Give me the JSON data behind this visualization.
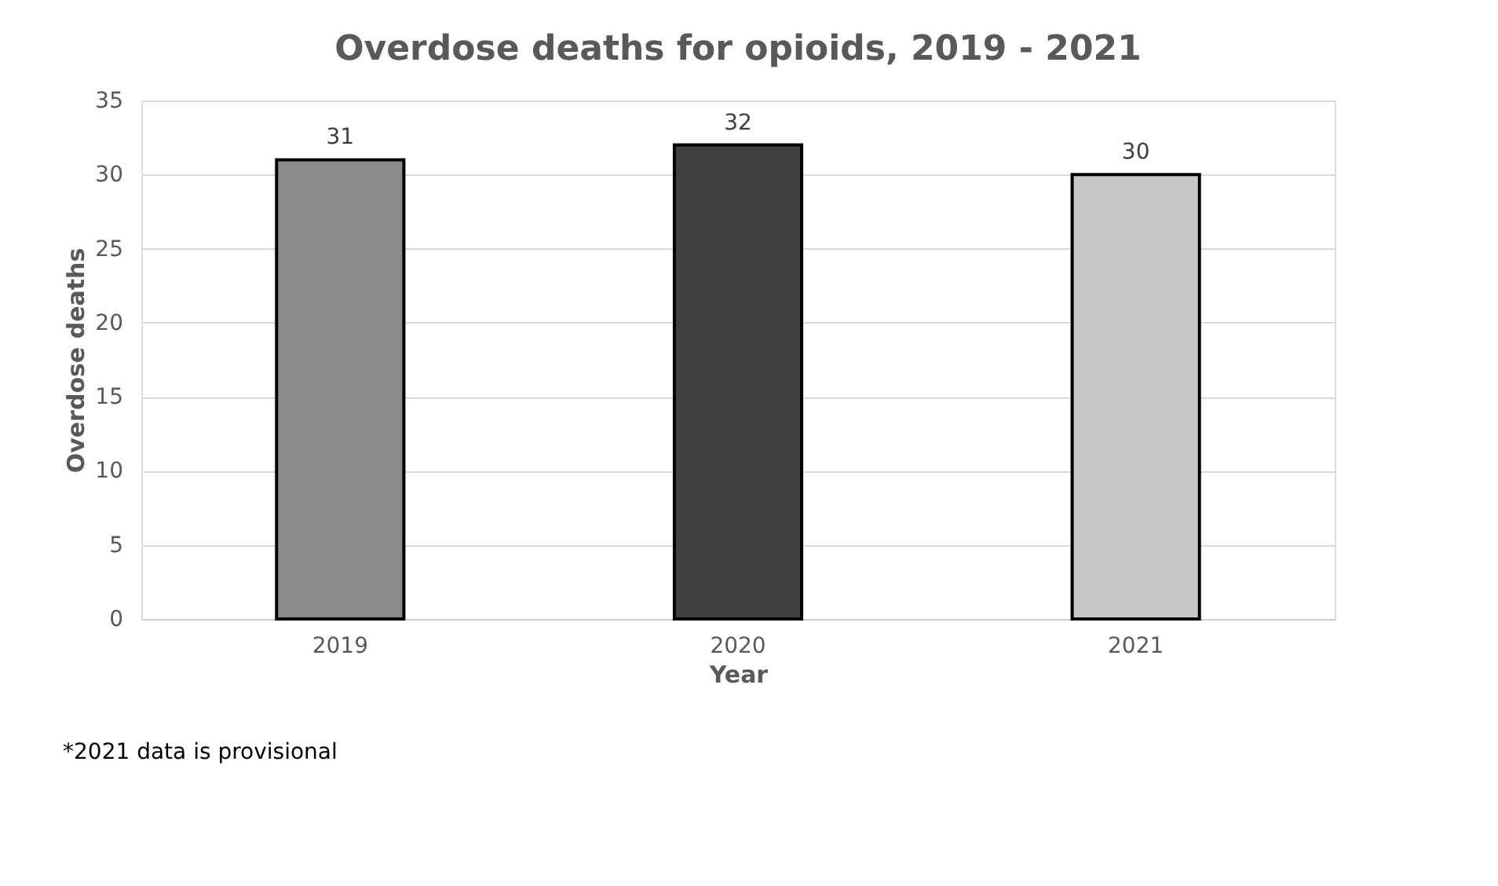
{
  "chart_data": {
    "type": "bar",
    "title": "Overdose deaths for opioids, 2019 - 2021",
    "categories": [
      "2019",
      "2020",
      "2021"
    ],
    "values": [
      31,
      32,
      30
    ],
    "colors": [
      "#8c8c8c",
      "#404040",
      "#c8c8c8"
    ],
    "xlabel": "Year",
    "ylabel": "Overdose deaths",
    "ylim": [
      0,
      35
    ],
    "yticks": [
      0,
      5,
      10,
      15,
      20,
      25,
      30,
      35
    ],
    "grid": "y",
    "data_labels": true,
    "legend": false,
    "annotations": [
      "*2021 data is provisional"
    ]
  }
}
